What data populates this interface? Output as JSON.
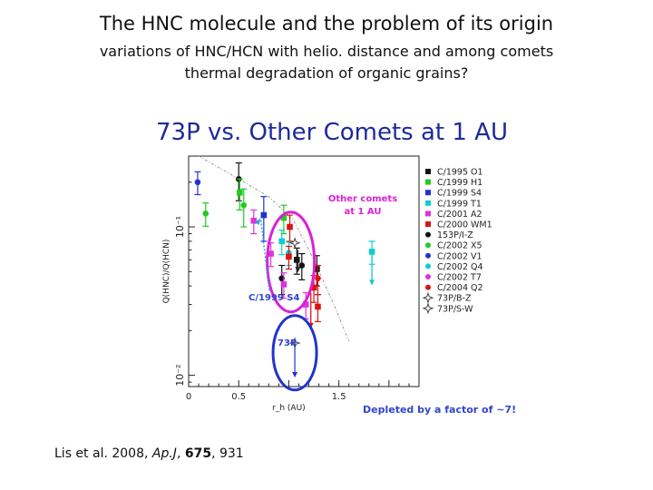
{
  "slide": {
    "title": "The HNC molecule and the problem of its origin",
    "subtitle_1": "variations of HNC/HCN with helio. distance and among comets",
    "subtitle_2": "thermal degradation of organic grains?"
  },
  "reference": {
    "authors": "Lis et al. 2008, ",
    "journal": "Ap.J",
    "sep": ", ",
    "volume": "675",
    "pages": ", 931"
  },
  "chart_data": {
    "type": "scatter",
    "title": "73P vs. Other Comets at 1 AU",
    "xlabel": "r_h (AU)",
    "ylabel": "Q(HNC)/Q(HCN)",
    "xlim": [
      0,
      2.3
    ],
    "ylog": true,
    "ylim": [
      0.0084,
      0.3
    ],
    "x_ticks": [
      {
        "v": 0,
        "label": "0"
      },
      {
        "v": 0.5,
        "label": "0.5"
      },
      {
        "v": 1.5,
        "label": "1.5"
      }
    ],
    "y_ticks": [
      {
        "v": 0.1,
        "label": "10⁻¹"
      },
      {
        "v": 0.01,
        "label": "10⁻²"
      }
    ],
    "trend_curve": [
      [
        0.1,
        0.3
      ],
      [
        0.4,
        0.23
      ],
      [
        0.8,
        0.16
      ],
      [
        1.05,
        0.11
      ],
      [
        1.25,
        0.06
      ],
      [
        1.45,
        0.03
      ],
      [
        1.6,
        0.017
      ]
    ],
    "legend": [
      {
        "label": "C/1995 O1",
        "color": "#111111",
        "marker": "square"
      },
      {
        "label": "C/1999 H1",
        "color": "#22cc22",
        "marker": "square"
      },
      {
        "label": "C/1999 S4",
        "color": "#2233cc",
        "marker": "square"
      },
      {
        "label": "C/1999 T1",
        "color": "#11cccc",
        "marker": "square"
      },
      {
        "label": "C/2001 A2",
        "color": "#dd33dd",
        "marker": "square"
      },
      {
        "label": "C/2000 WM1",
        "color": "#dd1111",
        "marker": "square"
      },
      {
        "label": "153P/I-Z",
        "color": "#111111",
        "marker": "circle"
      },
      {
        "label": "C/2002 X5",
        "color": "#22cc22",
        "marker": "circle"
      },
      {
        "label": "C/2002 V1",
        "color": "#2233cc",
        "marker": "circle"
      },
      {
        "label": "C/2002 Q4",
        "color": "#11cccc",
        "marker": "circle"
      },
      {
        "label": "C/2002 T7",
        "color": "#dd33dd",
        "marker": "circle"
      },
      {
        "label": "C/2004 Q2",
        "color": "#dd1111",
        "marker": "circle"
      },
      {
        "label": "73P/B-Z",
        "color": "#444444",
        "marker": "star"
      },
      {
        "label": "73P/S-W",
        "color": "#444444",
        "marker": "star"
      }
    ],
    "points": [
      {
        "x": 0.09,
        "y": 0.2,
        "err": 0.035,
        "color": "#2233cc",
        "marker": "circle"
      },
      {
        "x": 0.17,
        "y": 0.123,
        "err": 0.022,
        "color": "#22cc22",
        "marker": "circle"
      },
      {
        "x": 0.5,
        "y": 0.21,
        "err": 0.06,
        "color": "#111111",
        "marker": "circle"
      },
      {
        "x": 0.51,
        "y": 0.17,
        "err": 0.04,
        "color": "#22cc22",
        "marker": "square"
      },
      {
        "x": 0.55,
        "y": 0.14,
        "err": 0.04,
        "color": "#22cc22",
        "marker": "circle"
      },
      {
        "x": 0.65,
        "y": 0.11,
        "err": 0.02,
        "color": "#dd33dd",
        "marker": "square"
      },
      {
        "x": 0.75,
        "y": 0.12,
        "err": 0.04,
        "color": "#2233cc",
        "marker": "square"
      },
      {
        "x": 0.95,
        "y": 0.115,
        "err": 0.025,
        "color": "#22cc22",
        "marker": "square"
      },
      {
        "x": 1.01,
        "y": 0.1,
        "err": 0.02,
        "color": "#dd1111",
        "marker": "square"
      },
      {
        "x": 0.93,
        "y": 0.08,
        "err": 0.015,
        "color": "#11cccc",
        "marker": "square"
      },
      {
        "x": 1.0,
        "y": 0.067,
        "err": 0.012,
        "color": "#11cccc",
        "marker": "circle"
      },
      {
        "x": 0.82,
        "y": 0.066,
        "err": 0.012,
        "color": "#dd33dd",
        "marker": "square"
      },
      {
        "x": 1.0,
        "y": 0.063,
        "err": 0.011,
        "color": "#dd1111",
        "marker": "square"
      },
      {
        "x": 1.08,
        "y": 0.06,
        "err": 0.012,
        "color": "#111111",
        "marker": "square"
      },
      {
        "x": 1.13,
        "y": 0.055,
        "err": 0.011,
        "color": "#111111",
        "marker": "circle"
      },
      {
        "x": 1.28,
        "y": 0.052,
        "err": 0.012,
        "color": "#111111",
        "marker": "square"
      },
      {
        "x": 0.93,
        "y": 0.045,
        "err": 0.01,
        "color": "#111111",
        "marker": "circle"
      },
      {
        "x": 0.95,
        "y": 0.041,
        "err": 0.008,
        "color": "#dd33dd",
        "marker": "square"
      },
      {
        "x": 1.29,
        "y": 0.045,
        "err": 0.01,
        "color": "#dd1111",
        "marker": "circle"
      },
      {
        "x": 1.25,
        "y": 0.039,
        "err": 0.008,
        "color": "#dd1111",
        "marker": "square"
      },
      {
        "x": 1.17,
        "y": 0.03,
        "err": 0.006,
        "color": "#dd33dd",
        "marker": "square"
      },
      {
        "x": 1.29,
        "y": 0.029,
        "err": 0.006,
        "color": "#dd1111",
        "marker": "square"
      },
      {
        "x": 1.83,
        "y": 0.068,
        "err": 0.012,
        "color": "#11cccc",
        "marker": "square"
      }
    ],
    "upper_limits": [
      {
        "x": 1.22,
        "y": 0.036,
        "to": 0.021,
        "color": "#dd1111"
      },
      {
        "x": 1.83,
        "y": 0.068,
        "to": 0.041,
        "color": "#11cccc"
      }
    ],
    "star_points": [
      {
        "x": 1.06,
        "y": 0.078,
        "label": "73P/B-Z"
      },
      {
        "x": 1.06,
        "y": 0.0165,
        "label": "73P/S-W"
      }
    ],
    "annotations": {
      "other_comets": "Other comets",
      "other_comets_2": "at 1 AU",
      "c1999s4": "C/1999 S4",
      "p73": "73P",
      "depleted": "Depleted by a factor of ~7!"
    }
  }
}
